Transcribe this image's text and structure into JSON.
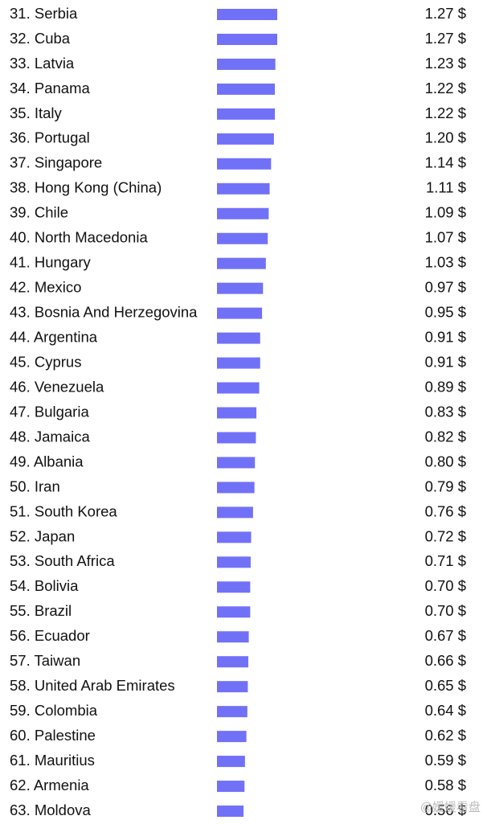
{
  "chart_data": {
    "type": "bar",
    "orientation": "horizontal",
    "color": "#7171f7",
    "categories": [
      "31. Serbia",
      "32. Cuba",
      "33. Latvia",
      "34. Panama",
      "35. Italy",
      "36. Portugal",
      "37. Singapore",
      "38. Hong Kong (China)",
      "39. Chile",
      "40. North Macedonia",
      "41. Hungary",
      "42. Mexico",
      "43. Bosnia And Herzegovina",
      "44. Argentina",
      "45. Cyprus",
      "46. Venezuela",
      "47. Bulgaria",
      "48. Jamaica",
      "49. Albania",
      "50. Iran",
      "51. South Korea",
      "52. Japan",
      "53. South Africa",
      "54. Bolivia",
      "55. Brazil",
      "56. Ecuador",
      "57. Taiwan",
      "58. United Arab Emirates",
      "59. Colombia",
      "60. Palestine",
      "61. Mauritius",
      "62. Armenia",
      "63. Moldova"
    ],
    "values": [
      1.27,
      1.27,
      1.23,
      1.22,
      1.22,
      1.2,
      1.14,
      1.11,
      1.09,
      1.07,
      1.03,
      0.97,
      0.95,
      0.91,
      0.91,
      0.89,
      0.83,
      0.82,
      0.8,
      0.79,
      0.76,
      0.72,
      0.71,
      0.7,
      0.7,
      0.67,
      0.66,
      0.65,
      0.64,
      0.62,
      0.59,
      0.58,
      0.56
    ],
    "value_labels": [
      "1.27 $",
      "1.27 $",
      "1.23 $",
      "1.22 $",
      "1.22 $",
      "1.20 $",
      "1.14 $",
      "1.11 $",
      "1.09 $",
      "1.07 $",
      "1.03 $",
      "0.97 $",
      "0.95 $",
      "0.91 $",
      "0.91 $",
      "0.89 $",
      "0.83 $",
      "0.82 $",
      "0.80 $",
      "0.79 $",
      "0.76 $",
      "0.72 $",
      "0.71 $",
      "0.70 $",
      "0.70 $",
      "0.67 $",
      "0.66 $",
      "0.65 $",
      "0.64 $",
      "0.62 $",
      "0.59 $",
      "0.58 $",
      "0.56 $"
    ],
    "watermark": "@媛媛看盘"
  }
}
